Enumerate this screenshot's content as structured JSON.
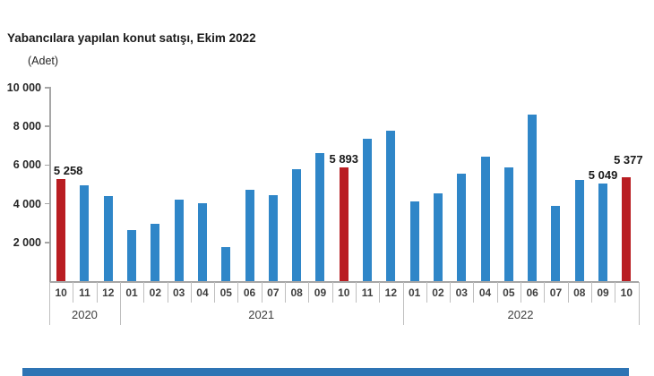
{
  "header": {
    "title": "Yabancılara yapılan konut satışı, Ekim 2022",
    "unit_label": "(Adet)"
  },
  "colors": {
    "bar_blue": "#2f86c8",
    "bar_red": "#b91d22",
    "axis_gray": "#a6a6a6",
    "separator_gray": "#bfbfbf",
    "text_dark": "#1a1a1a",
    "category_text": "#3f3f3f",
    "footer_blue": "#2e74b4"
  },
  "chart_data": {
    "type": "bar",
    "title": "Yabancılara yapılan konut satışı, Ekim 2022",
    "ylabel": "(Adet)",
    "ylim": [
      0,
      10000
    ],
    "ytick_interval": 2000,
    "grid": false,
    "legend": false,
    "yticks": [
      {
        "label": "10 000",
        "value": 10000
      },
      {
        "label": "8 000",
        "value": 8000
      },
      {
        "label": "6 000",
        "value": 6000
      },
      {
        "label": "4 000",
        "value": 4000
      },
      {
        "label": "2 000",
        "value": 2000
      }
    ],
    "groups": [
      {
        "year": "2020",
        "start_index": 0,
        "count": 3
      },
      {
        "year": "2021",
        "start_index": 3,
        "count": 12
      },
      {
        "year": "2022",
        "start_index": 15,
        "count": 10
      }
    ],
    "bars": [
      {
        "year": "2020",
        "month": "10",
        "value": 5258,
        "highlight": true,
        "label": "5 258"
      },
      {
        "year": "2020",
        "month": "11",
        "value": 4950,
        "highlight": false,
        "label": null
      },
      {
        "year": "2020",
        "month": "12",
        "value": 4400,
        "highlight": false,
        "label": null
      },
      {
        "year": "2021",
        "month": "01",
        "value": 2650,
        "highlight": false,
        "label": null
      },
      {
        "year": "2021",
        "month": "02",
        "value": 2950,
        "highlight": false,
        "label": null
      },
      {
        "year": "2021",
        "month": "03",
        "value": 4200,
        "highlight": false,
        "label": null
      },
      {
        "year": "2021",
        "month": "04",
        "value": 4050,
        "highlight": false,
        "label": null
      },
      {
        "year": "2021",
        "month": "05",
        "value": 1750,
        "highlight": false,
        "label": null
      },
      {
        "year": "2021",
        "month": "06",
        "value": 4700,
        "highlight": false,
        "label": null
      },
      {
        "year": "2021",
        "month": "07",
        "value": 4450,
        "highlight": false,
        "label": null
      },
      {
        "year": "2021",
        "month": "08",
        "value": 5800,
        "highlight": false,
        "label": null
      },
      {
        "year": "2021",
        "month": "09",
        "value": 6600,
        "highlight": false,
        "label": null
      },
      {
        "year": "2021",
        "month": "10",
        "value": 5893,
        "highlight": true,
        "label": "5 893"
      },
      {
        "year": "2021",
        "month": "11",
        "value": 7350,
        "highlight": false,
        "label": null
      },
      {
        "year": "2021",
        "month": "12",
        "value": 7800,
        "highlight": false,
        "label": null
      },
      {
        "year": "2022",
        "month": "01",
        "value": 4100,
        "highlight": false,
        "label": null
      },
      {
        "year": "2022",
        "month": "02",
        "value": 4550,
        "highlight": false,
        "label": null
      },
      {
        "year": "2022",
        "month": "03",
        "value": 5550,
        "highlight": false,
        "label": null
      },
      {
        "year": "2022",
        "month": "04",
        "value": 6450,
        "highlight": false,
        "label": null
      },
      {
        "year": "2022",
        "month": "05",
        "value": 5900,
        "highlight": false,
        "label": null
      },
      {
        "year": "2022",
        "month": "06",
        "value": 8600,
        "highlight": false,
        "label": null
      },
      {
        "year": "2022",
        "month": "07",
        "value": 3900,
        "highlight": false,
        "label": null
      },
      {
        "year": "2022",
        "month": "08",
        "value": 5250,
        "highlight": false,
        "label": null
      },
      {
        "year": "2022",
        "month": "09",
        "value": 5049,
        "highlight": false,
        "label": "5 049"
      },
      {
        "year": "2022",
        "month": "10",
        "value": 5377,
        "highlight": true,
        "label": "5 377",
        "label_raised": true
      }
    ]
  }
}
